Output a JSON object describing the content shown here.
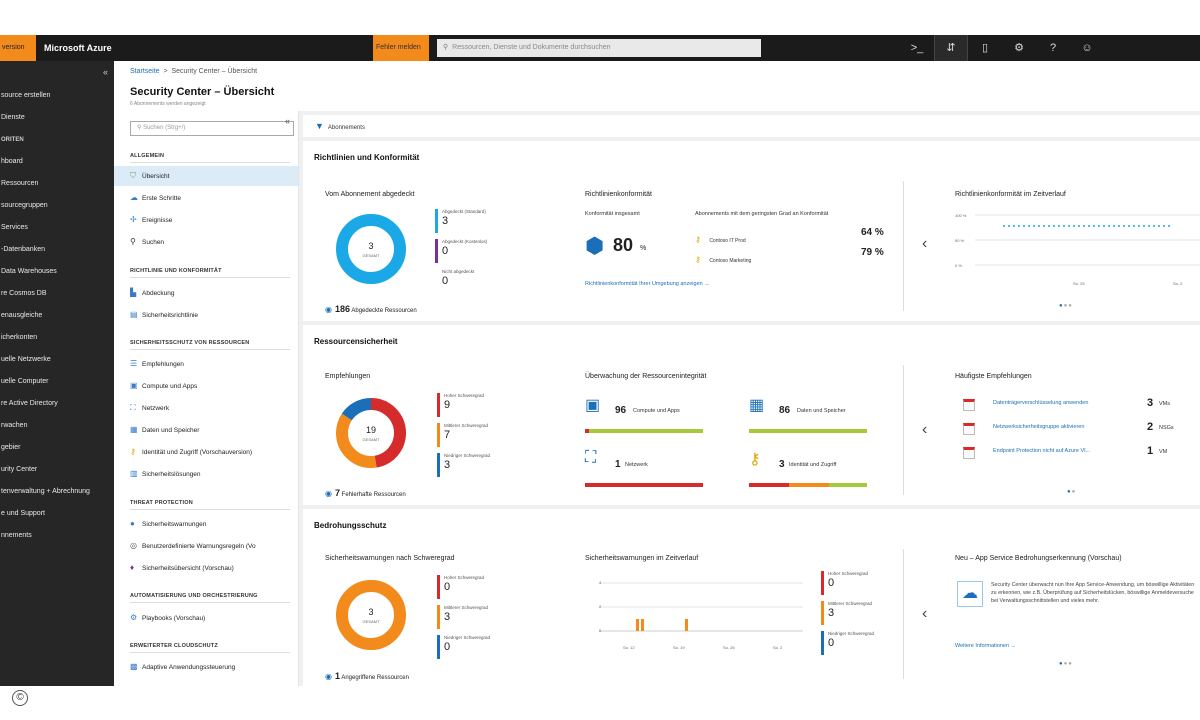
{
  "topbar": {
    "preview_label": "version",
    "brand": "Microsoft Azure",
    "feedback_label": "Fehler melden",
    "search_placeholder": "Ressourcen, Dienste und Dokumente durchsuchen",
    "icons": [
      "cloud-shell-icon",
      "directory-filter-icon",
      "notifications-icon",
      "settings-icon",
      "help-icon",
      "feedback-smiley-icon"
    ]
  },
  "leftnav": {
    "collapse": "«",
    "items": [
      "source erstellen",
      "Dienste",
      "ORITEN",
      "hboard",
      "Ressourcen",
      "sourcegruppen",
      "Services",
      "-Datenbanken",
      "Data Warehouses",
      "re Cosmos DB",
      "enausgleiche",
      "icherkonten",
      "uelle Netzwerke",
      "uelle Computer",
      "re Active Directory",
      "rwachen",
      "gebier",
      "urity Center",
      "tenverwaltung + Abrechnung",
      "e und Support",
      "nnements"
    ]
  },
  "header": {
    "crumb_home": "Startseite",
    "crumb_sep": ">",
    "crumb_current": "Security Center – Übersicht",
    "title": "Security Center – Übersicht",
    "subtitle": "6 Abonnements werden angezeigt"
  },
  "blade": {
    "search_placeholder": "Suchen (Strg+/)",
    "collapse": "«",
    "sections": {
      "general": "ALLGEMEIN",
      "policy": "RICHTLINIE UND KONFORMITÄT",
      "resource_security": "SICHERHEITSSCHUTZ VON RESSOURCEN",
      "threat": "THREAT PROTECTION",
      "automation": "AUTOMATISIERUNG UND ORCHESTRIERUNG",
      "cloud": "ERWEITERTER CLOUDSCHUTZ"
    },
    "items": {
      "overview": "Übersicht",
      "first_steps": "Erste Schritte",
      "events": "Ereignisse",
      "search": "Suchen",
      "coverage": "Abdeckung",
      "security_policy": "Sicherheitsrichtlinie",
      "recommendations": "Empfehlungen",
      "compute": "Compute und Apps",
      "network": "Netzwerk",
      "data": "Daten und Speicher",
      "identity": "Identität und Zugriff (Vorschauversion)",
      "security_solutions": "Sicherheitslösungen",
      "security_alerts": "Sicherheitswarnungen",
      "custom_alerts": "Benutzerdefinierte Warnungsregeln (Vo",
      "threat_intel": "Sicherheitsübersicht (Vorschau)",
      "playbooks": "Playbooks (Vorschau)",
      "adaptive": "Adaptive Anwendungssteuerung"
    }
  },
  "filterbar": {
    "label": "Abonnements"
  },
  "policy_panel": {
    "title": "Richtlinien und Konformität",
    "coverage_title": "Vom Abonnement abgedeckt",
    "donut_num": "3",
    "donut_label": "GESAMT",
    "legend": [
      {
        "label": "Abgedeckt (Standard)",
        "value": "3"
      },
      {
        "label": "Abgedeckt (Kostenlos)",
        "value": "0"
      },
      {
        "label": "Nicht abgedeckt",
        "value": "0"
      }
    ],
    "footer_num": "186",
    "footer_text": "Abgedeckte Ressourcen",
    "compliance_title": "Richtlinienkonformität",
    "overall_label": "Konformität insgesamt",
    "overall_value": "80",
    "overall_unit": "%",
    "lowest_label": "Abonnements mit dem geringsten Grad an Konformität",
    "subs": [
      {
        "name": "Contoso IT Prod",
        "value": "64 %"
      },
      {
        "name": "Contoso Marketing",
        "value": "79 %"
      }
    ],
    "compliance_link": "Richtlinienkonformität Ihrer Umgebung anzeigen →",
    "history_title": "Richtlinienkonformität im Zeitverlauf",
    "history_ticks_y": [
      "100 %",
      "50 %",
      "0 %"
    ],
    "history_ticks_x": [
      "So. 25",
      "So. 2"
    ]
  },
  "resource_panel": {
    "title": "Ressourcensicherheit",
    "rec_title": "Empfehlungen",
    "donut_num": "19",
    "donut_label": "GESAMT",
    "legend": [
      {
        "label": "Hoher Schweregrad",
        "value": "9"
      },
      {
        "label": "Mittlerer Schweregrad",
        "value": "7"
      },
      {
        "label": "Niedriger Schweregrad",
        "value": "3"
      }
    ],
    "footer_num": "7",
    "footer_text": "Fehlerhafte Ressourcen",
    "health_title": "Überwachung der Ressourcenintegrität",
    "tiles": [
      {
        "num": "96",
        "text": "Compute und Apps"
      },
      {
        "num": "86",
        "text": "Daten und Speicher"
      },
      {
        "num": "1",
        "text": "Netzwerk"
      },
      {
        "num": "3",
        "text": "Identität und Zugriff"
      }
    ],
    "top_title": "Häufigste Empfehlungen",
    "top_recs": [
      {
        "text": "Datenträgerverschlüsselung anwenden",
        "num": "3",
        "unit": "VMs"
      },
      {
        "text": "Netzwerksicherheitsgruppe aktivieren",
        "num": "2",
        "unit": "NSGs"
      },
      {
        "text": "Endpoint Protection nicht auf Azure VI...",
        "num": "1",
        "unit": "VM"
      }
    ]
  },
  "threat_panel": {
    "title": "Bedrohungsschutz",
    "alerts_title": "Sicherheitswarnungen nach Schweregrad",
    "donut_num": "3",
    "donut_label": "GESAMT",
    "legend": [
      {
        "label": "Hoher Schweregrad",
        "value": "0"
      },
      {
        "label": "Mittlerer Schweregrad",
        "value": "3"
      },
      {
        "label": "Niedriger Schweregrad",
        "value": "0"
      }
    ],
    "footer_num": "1",
    "footer_text": "Angegriffene Ressourcen",
    "timeline_title": "Sicherheitswarnungen im Zeitverlauf",
    "timeline_y": [
      "4",
      "2",
      "0"
    ],
    "timeline_x": [
      "So. 12",
      "So. 19",
      "So. 26",
      "So. 2"
    ],
    "timeline_legend": [
      {
        "label": "Hoher Schweregrad",
        "value": "0"
      },
      {
        "label": "Mittlerer Schweregrad",
        "value": "3"
      },
      {
        "label": "Niedriger Schweregrad",
        "value": "0"
      }
    ],
    "news_title": "Neu – App Service Bedrohungserkennung (Vorschau)",
    "news_text": "Security Center überwacht nun Ihre App Service-Anwendung, um böswillige Aktivitäten zu erkennen, wie z.B. Überprüfung auf Sicherheitslücken, böswillige Anmeldeversuche bei Verwaltungsschnittstellen und vieles mehr.",
    "news_link": "Weitere Informationen →"
  },
  "colors": {
    "accent": "#1a6fb8",
    "cyan": "#1aa9e6",
    "red": "#d62b2b",
    "orange": "#f28a1c",
    "purple": "#7a2f9a",
    "green": "#a6c93c",
    "gray": "#b5b5b5"
  },
  "copyright": "©"
}
